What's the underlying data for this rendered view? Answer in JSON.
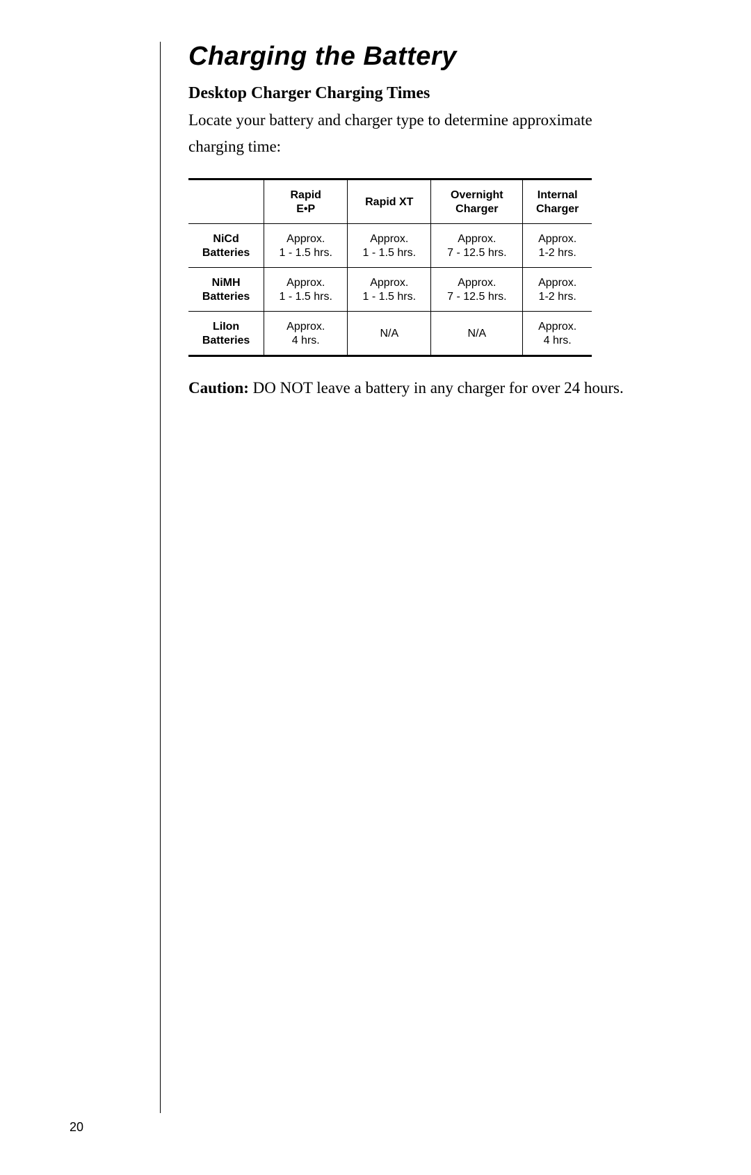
{
  "page": {
    "number": "20"
  },
  "chapter": {
    "title": "Charging the Battery"
  },
  "section": {
    "title": "Desktop Charger Charging Times",
    "intro": "Locate your battery and charger type to determine approximate charging time:"
  },
  "table": {
    "columns": [
      {
        "line1": "Rapid",
        "line2": "E•P"
      },
      {
        "line1": "Rapid XT",
        "line2": ""
      },
      {
        "line1": "Overnight",
        "line2": "Charger"
      },
      {
        "line1": "Internal",
        "line2": "Charger"
      }
    ],
    "rows": [
      {
        "head1": "NiCd",
        "head2": "Batteries",
        "cells": [
          {
            "l1": "Approx.",
            "l2": "1 - 1.5 hrs."
          },
          {
            "l1": "Approx.",
            "l2": "1 - 1.5 hrs."
          },
          {
            "l1": "Approx.",
            "l2": "7 - 12.5 hrs."
          },
          {
            "l1": "Approx.",
            "l2": "1-2 hrs."
          }
        ]
      },
      {
        "head1": "NiMH",
        "head2": "Batteries",
        "cells": [
          {
            "l1": "Approx.",
            "l2": "1 - 1.5 hrs."
          },
          {
            "l1": "Approx.",
            "l2": "1 - 1.5 hrs."
          },
          {
            "l1": "Approx.",
            "l2": "7 - 12.5 hrs."
          },
          {
            "l1": "Approx.",
            "l2": "1-2 hrs."
          }
        ]
      },
      {
        "head1": "LiIon",
        "head2": "Batteries",
        "cells": [
          {
            "l1": "Approx.",
            "l2": "4 hrs."
          },
          {
            "l1": "N/A",
            "l2": ""
          },
          {
            "l1": "N/A",
            "l2": ""
          },
          {
            "l1": "Approx.",
            "l2": "4 hrs."
          }
        ]
      }
    ]
  },
  "caution": {
    "label": "Caution:",
    "text": " DO NOT leave a battery in any charger for over 24 hours."
  }
}
